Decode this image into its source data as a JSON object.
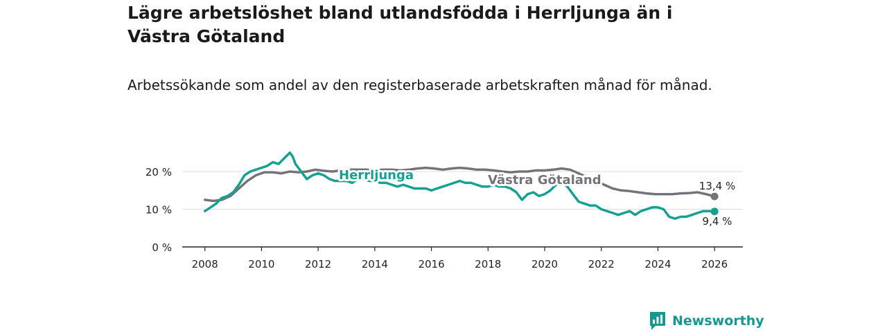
{
  "header": {
    "title": "Lägre arbetslöshet bland utlandsfödda i Herrljunga än i Västra Götaland",
    "subtitle": "Arbetssökande som andel av den registerbaserade arbetskraften månad för månad."
  },
  "brand": {
    "name": "Newsworthy"
  },
  "colors": {
    "herrljunga": "#16a091",
    "vg": "#757379",
    "grid": "#dddddd",
    "axis": "#222222"
  },
  "chart_data": {
    "type": "line",
    "title": "Lägre arbetslöshet bland utlandsfödda i Herrljunga än i Västra Götaland",
    "subtitle": "Arbetssökande som andel av den registerbaserade arbetskraften månad för månad.",
    "xlabel": "",
    "ylabel": "",
    "xlim": [
      2007.2,
      2027.0
    ],
    "ylim": [
      0,
      20
    ],
    "y_ticks": [
      0,
      10,
      20
    ],
    "y_tick_labels": [
      "0 %",
      "10 %",
      "20 %"
    ],
    "x_ticks": [
      2008,
      2010,
      2012,
      2014,
      2016,
      2018,
      2020,
      2022,
      2024,
      2026
    ],
    "x_tick_labels": [
      "2008",
      "2010",
      "2012",
      "2014",
      "2016",
      "2018",
      "2020",
      "2022",
      "2024",
      "2026"
    ],
    "grid": true,
    "series": [
      {
        "name": "Herrljunga",
        "label": "Herrljunga",
        "end_label": "9,4 %",
        "x": [
          2008.0,
          2008.2,
          2008.4,
          2008.6,
          2008.8,
          2009.0,
          2009.2,
          2009.4,
          2009.6,
          2009.8,
          2010.0,
          2010.2,
          2010.4,
          2010.6,
          2010.8,
          2011.0,
          2011.1,
          2011.2,
          2011.4,
          2011.6,
          2011.8,
          2012.0,
          2012.2,
          2012.4,
          2012.6,
          2012.8,
          2013.0,
          2013.2,
          2013.4,
          2013.6,
          2013.8,
          2014.0,
          2014.2,
          2014.4,
          2014.6,
          2014.8,
          2015.0,
          2015.2,
          2015.4,
          2015.6,
          2015.8,
          2016.0,
          2016.2,
          2016.4,
          2016.6,
          2016.8,
          2017.0,
          2017.2,
          2017.4,
          2017.6,
          2017.8,
          2018.0,
          2018.2,
          2018.4,
          2018.6,
          2018.8,
          2019.0,
          2019.2,
          2019.4,
          2019.6,
          2019.8,
          2020.0,
          2020.2,
          2020.4,
          2020.6,
          2020.8,
          2021.0,
          2021.2,
          2021.4,
          2021.6,
          2021.8,
          2022.0,
          2022.2,
          2022.4,
          2022.6,
          2022.8,
          2023.0,
          2023.2,
          2023.4,
          2023.6,
          2023.8,
          2024.0,
          2024.2,
          2024.4,
          2024.6,
          2024.8,
          2025.0,
          2025.2,
          2025.4,
          2025.6,
          2025.8,
          2026.0
        ],
        "values": [
          9.5,
          10.5,
          11.5,
          13.0,
          13.5,
          14.5,
          16.5,
          19.0,
          20.0,
          20.5,
          21.0,
          21.5,
          22.5,
          22.0,
          23.5,
          25.0,
          24.0,
          22.0,
          20.0,
          18.0,
          19.0,
          19.5,
          19.0,
          18.0,
          17.5,
          17.5,
          17.5,
          17.0,
          18.0,
          18.0,
          17.5,
          17.5,
          17.0,
          17.0,
          16.5,
          16.0,
          16.5,
          16.0,
          15.5,
          15.5,
          15.5,
          15.0,
          15.5,
          16.0,
          16.5,
          17.0,
          17.5,
          17.0,
          17.0,
          16.5,
          16.0,
          16.0,
          16.5,
          16.0,
          16.0,
          15.5,
          14.5,
          12.5,
          14.0,
          14.5,
          13.5,
          14.0,
          15.0,
          16.5,
          17.0,
          16.0,
          14.0,
          12.0,
          11.5,
          11.0,
          11.0,
          10.0,
          9.5,
          9.0,
          8.5,
          9.0,
          9.5,
          8.5,
          9.5,
          10.0,
          10.5,
          10.5,
          10.0,
          8.0,
          7.5,
          8.0,
          8.0,
          8.5,
          9.0,
          9.5,
          9.5,
          9.4
        ]
      },
      {
        "name": "Västra Götaland",
        "label": "Västra Götaland",
        "end_label": "13,4 %",
        "x": [
          2008.0,
          2008.3,
          2008.6,
          2008.9,
          2009.2,
          2009.5,
          2009.8,
          2010.1,
          2010.4,
          2010.7,
          2011.0,
          2011.3,
          2011.6,
          2011.9,
          2012.2,
          2012.5,
          2012.8,
          2013.1,
          2013.4,
          2013.7,
          2014.0,
          2014.3,
          2014.6,
          2014.9,
          2015.2,
          2015.5,
          2015.8,
          2016.1,
          2016.4,
          2016.7,
          2017.0,
          2017.3,
          2017.6,
          2017.9,
          2018.2,
          2018.5,
          2018.8,
          2019.1,
          2019.4,
          2019.7,
          2020.0,
          2020.3,
          2020.6,
          2020.9,
          2021.2,
          2021.5,
          2021.8,
          2022.1,
          2022.4,
          2022.7,
          2023.0,
          2023.3,
          2023.6,
          2023.9,
          2024.2,
          2024.5,
          2024.8,
          2025.1,
          2025.4,
          2025.7,
          2026.0
        ],
        "values": [
          12.5,
          12.2,
          12.5,
          13.5,
          15.5,
          17.5,
          19.0,
          19.8,
          19.8,
          19.5,
          20.0,
          19.8,
          20.0,
          20.5,
          20.2,
          20.0,
          20.3,
          20.5,
          20.5,
          20.5,
          20.3,
          20.5,
          20.5,
          20.3,
          20.5,
          20.8,
          21.0,
          20.8,
          20.5,
          20.8,
          21.0,
          20.8,
          20.5,
          20.5,
          20.3,
          20.0,
          19.8,
          20.0,
          20.0,
          20.3,
          20.3,
          20.5,
          20.8,
          20.5,
          19.5,
          18.5,
          17.5,
          16.5,
          15.5,
          15.0,
          14.8,
          14.5,
          14.2,
          14.0,
          14.0,
          14.0,
          14.2,
          14.3,
          14.5,
          14.0,
          13.4
        ]
      }
    ]
  }
}
